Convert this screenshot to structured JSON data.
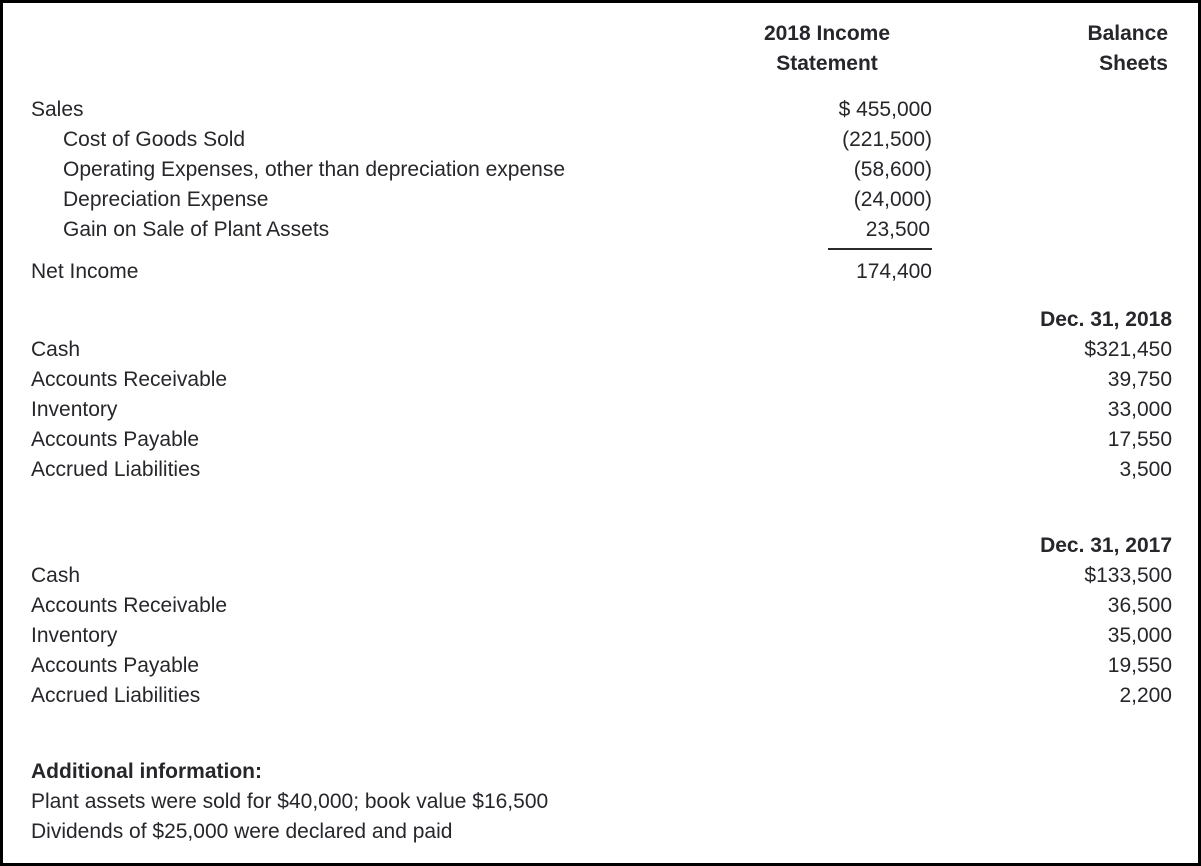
{
  "columns": {
    "income_line1": "2018 Income",
    "income_line2": "Statement",
    "balance_line1": "Balance",
    "balance_line2": "Sheets"
  },
  "income_statement": {
    "rows": [
      {
        "label": "Sales",
        "amount": "$ 455,000"
      },
      {
        "label": "Cost of Goods Sold",
        "amount": "(221,500)"
      },
      {
        "label": "Operating Expenses, other than depreciation expense",
        "amount": "(58,600)"
      },
      {
        "label": "Depreciation Expense",
        "amount": "(24,000)"
      },
      {
        "label": "Gain on Sale of Plant Assets",
        "amount": "23,500"
      },
      {
        "label": "Net Income",
        "amount": "174,400"
      }
    ]
  },
  "balance_2018": {
    "date": "Dec. 31, 2018",
    "rows": [
      {
        "label": "Cash",
        "amount": "$321,450"
      },
      {
        "label": "Accounts Receivable",
        "amount": "39,750"
      },
      {
        "label": "Inventory",
        "amount": "33,000"
      },
      {
        "label": "Accounts Payable",
        "amount": "17,550"
      },
      {
        "label": "Accrued Liabilities",
        "amount": "3,500"
      }
    ]
  },
  "balance_2017": {
    "date": "Dec. 31, 2017",
    "rows": [
      {
        "label": "Cash",
        "amount": "$133,500"
      },
      {
        "label": "Accounts Receivable",
        "amount": "36,500"
      },
      {
        "label": "Inventory",
        "amount": "35,000"
      },
      {
        "label": "Accounts Payable",
        "amount": "19,550"
      },
      {
        "label": "Accrued Liabilities",
        "amount": "2,200"
      }
    ]
  },
  "additional_info": {
    "heading": "Additional information:",
    "lines": [
      "Plant assets were sold for $40,000; book value $16,500",
      "Dividends of $25,000 were declared and paid"
    ]
  }
}
